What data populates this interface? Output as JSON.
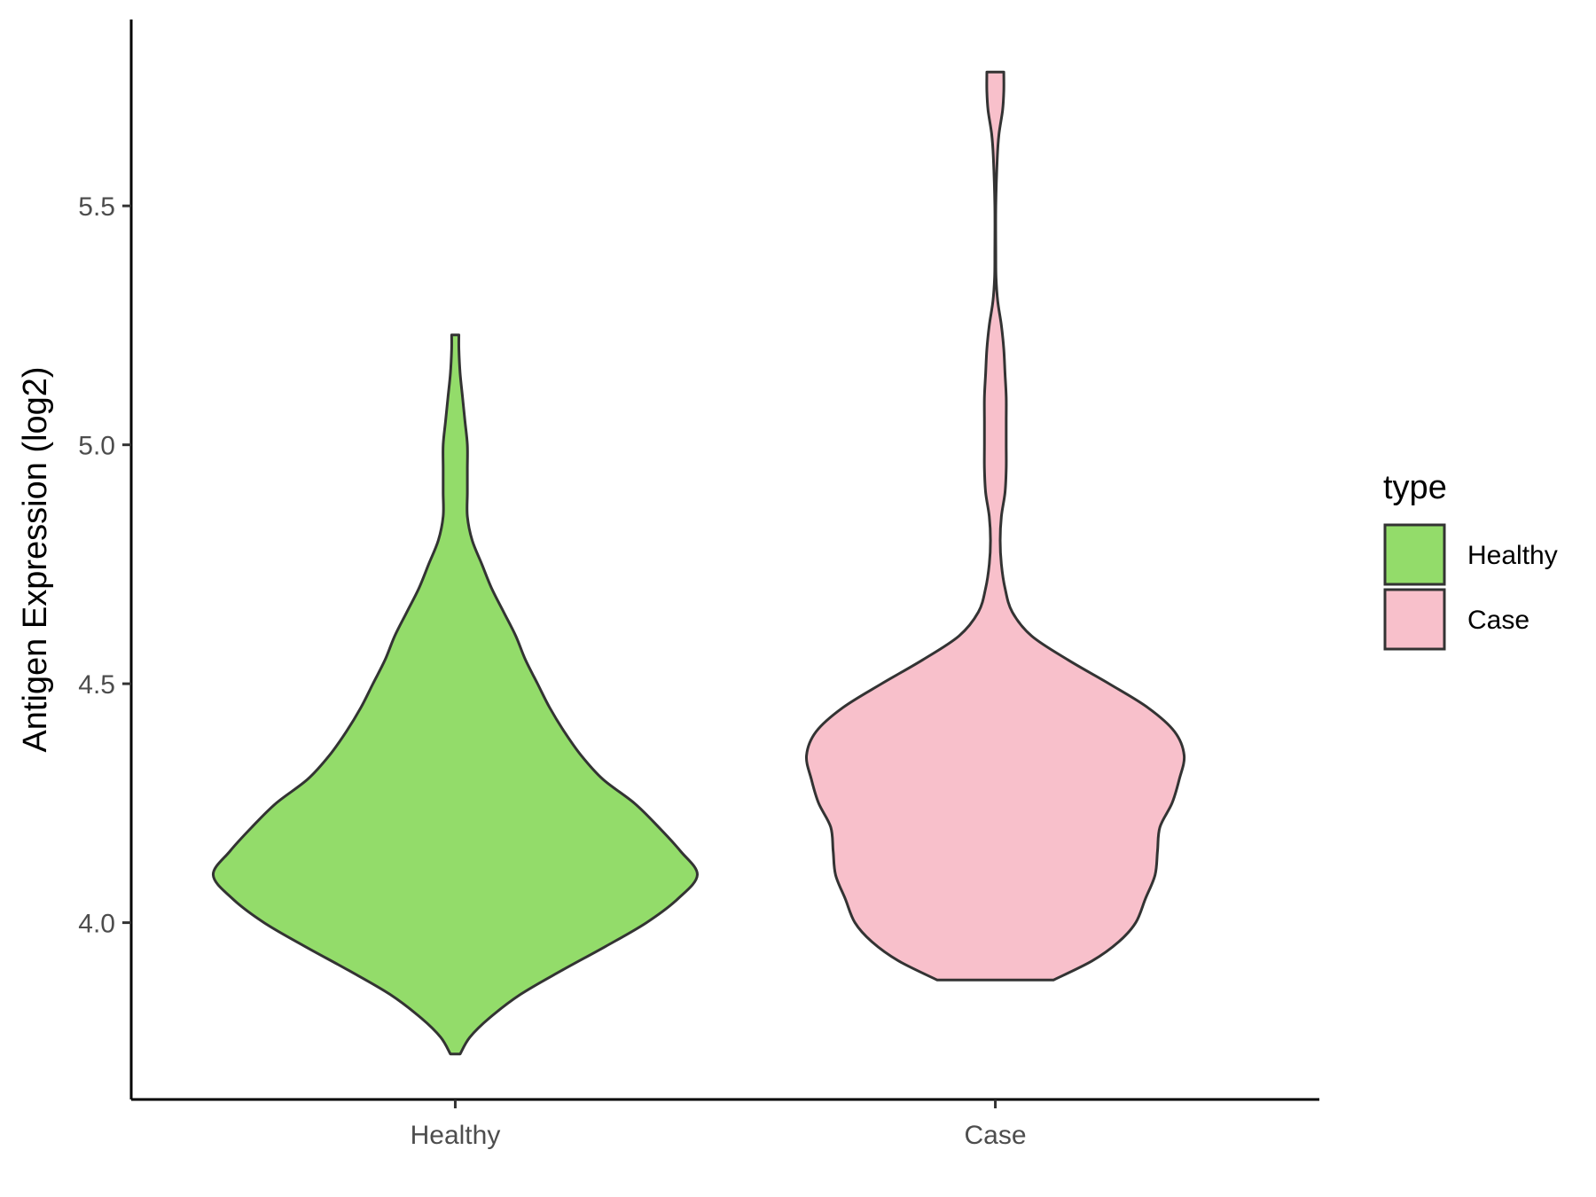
{
  "chart_data": {
    "type": "violin",
    "xlabel": "",
    "ylabel": "Antigen Expression (log2)",
    "categories": [
      "Healthy",
      "Case"
    ],
    "ylim": [
      3.63,
      5.89
    ],
    "yticks": [
      "4.0",
      "4.5",
      "5.0",
      "5.5"
    ],
    "ytick_values": [
      4.0,
      4.5,
      5.0,
      5.5
    ],
    "grid": false,
    "legend": {
      "title": "type",
      "position": "right",
      "entries": [
        "Healthy",
        "Case"
      ]
    },
    "colors": {
      "Healthy": "#93dc6a",
      "Case": "#f8c0cb",
      "outline": "#333333"
    },
    "series": [
      {
        "name": "Healthy",
        "min": 3.725,
        "max": 5.23,
        "density": [
          [
            3.725,
            0.02
          ],
          [
            3.76,
            0.06
          ],
          [
            3.8,
            0.14
          ],
          [
            3.85,
            0.27
          ],
          [
            3.9,
            0.44
          ],
          [
            3.95,
            0.62
          ],
          [
            4.0,
            0.79
          ],
          [
            4.05,
            0.92
          ],
          [
            4.1,
            1.0
          ],
          [
            4.15,
            0.93
          ],
          [
            4.2,
            0.84
          ],
          [
            4.25,
            0.74
          ],
          [
            4.3,
            0.61
          ],
          [
            4.35,
            0.52
          ],
          [
            4.4,
            0.45
          ],
          [
            4.45,
            0.39
          ],
          [
            4.5,
            0.34
          ],
          [
            4.55,
            0.29
          ],
          [
            4.6,
            0.25
          ],
          [
            4.65,
            0.2
          ],
          [
            4.7,
            0.15
          ],
          [
            4.75,
            0.11
          ],
          [
            4.8,
            0.07
          ],
          [
            4.85,
            0.05
          ],
          [
            4.9,
            0.05
          ],
          [
            4.95,
            0.05
          ],
          [
            5.0,
            0.05
          ],
          [
            5.05,
            0.04
          ],
          [
            5.1,
            0.03
          ],
          [
            5.15,
            0.02
          ],
          [
            5.2,
            0.015
          ],
          [
            5.23,
            0.015
          ]
        ]
      },
      {
        "name": "Case",
        "min": 3.88,
        "max": 5.78,
        "density": [
          [
            3.88,
            0.24
          ],
          [
            3.92,
            0.4
          ],
          [
            3.96,
            0.51
          ],
          [
            4.0,
            0.58
          ],
          [
            4.05,
            0.62
          ],
          [
            4.1,
            0.66
          ],
          [
            4.15,
            0.67
          ],
          [
            4.2,
            0.68
          ],
          [
            4.25,
            0.73
          ],
          [
            4.3,
            0.76
          ],
          [
            4.35,
            0.78
          ],
          [
            4.4,
            0.74
          ],
          [
            4.45,
            0.63
          ],
          [
            4.5,
            0.47
          ],
          [
            4.55,
            0.3
          ],
          [
            4.6,
            0.15
          ],
          [
            4.65,
            0.07
          ],
          [
            4.7,
            0.04
          ],
          [
            4.75,
            0.025
          ],
          [
            4.8,
            0.02
          ],
          [
            4.85,
            0.025
          ],
          [
            4.9,
            0.04
          ],
          [
            4.95,
            0.045
          ],
          [
            5.0,
            0.045
          ],
          [
            5.05,
            0.045
          ],
          [
            5.1,
            0.045
          ],
          [
            5.15,
            0.04
          ],
          [
            5.2,
            0.035
          ],
          [
            5.25,
            0.025
          ],
          [
            5.3,
            0.01
          ],
          [
            5.35,
            0.003
          ],
          [
            5.4,
            0.002
          ],
          [
            5.5,
            0.002
          ],
          [
            5.6,
            0.008
          ],
          [
            5.65,
            0.015
          ],
          [
            5.7,
            0.03
          ],
          [
            5.74,
            0.035
          ],
          [
            5.78,
            0.035
          ]
        ]
      }
    ]
  }
}
